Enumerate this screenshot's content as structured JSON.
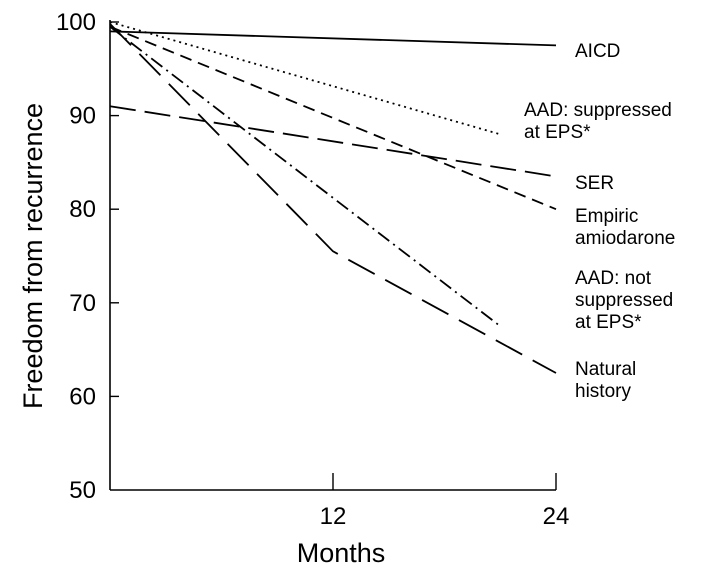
{
  "chart_data": {
    "type": "line",
    "title": "",
    "xlabel": "Months",
    "ylabel": "Freedom from recurrence",
    "xlim": [
      0,
      24
    ],
    "ylim": [
      50,
      100
    ],
    "x_ticks": [
      12,
      24
    ],
    "y_ticks": [
      50,
      60,
      70,
      80,
      90,
      100
    ],
    "grid": false,
    "legend": "direct labels at line ends",
    "series": [
      {
        "label_lines": [
          "AICD"
        ],
        "dash": "solid",
        "points": [
          [
            0,
            99
          ],
          [
            24,
            97.5
          ]
        ]
      },
      {
        "label_lines": [
          "AAD: suppressed",
          "at EPS*"
        ],
        "dash": "dotted",
        "points": [
          [
            0,
            100
          ],
          [
            21,
            88
          ]
        ]
      },
      {
        "label_lines": [
          "SER"
        ],
        "dash": "long-dash",
        "points": [
          [
            0,
            91
          ],
          [
            24,
            83.5
          ]
        ]
      },
      {
        "label_lines": [
          "Empiric",
          "amiodarone"
        ],
        "dash": "dash",
        "points": [
          [
            0,
            99.5
          ],
          [
            24,
            80
          ]
        ]
      },
      {
        "label_lines": [
          "AAD: not",
          "suppressed",
          "at EPS*"
        ],
        "dash": "dash-dot",
        "points": [
          [
            0,
            99.5
          ],
          [
            21,
            67.5
          ]
        ]
      },
      {
        "label_lines": [
          "Natural",
          "history"
        ],
        "dash": "long-dash-open",
        "points": [
          [
            0,
            99.8
          ],
          [
            12,
            75.5
          ],
          [
            24,
            62.5
          ]
        ]
      }
    ]
  }
}
